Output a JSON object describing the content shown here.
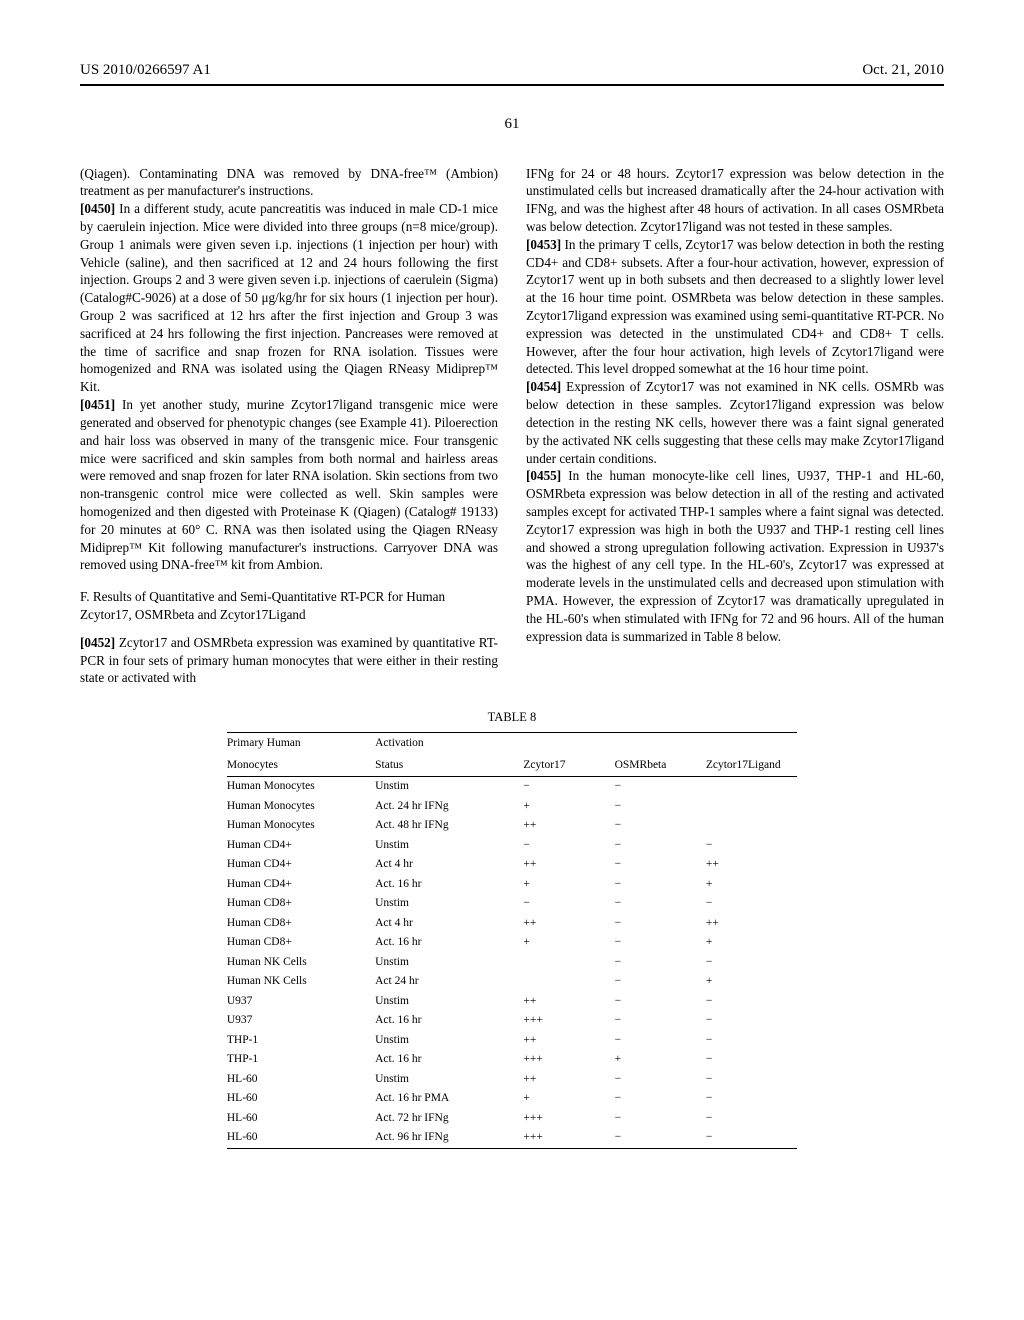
{
  "header": {
    "left": "US 2010/0266597 A1",
    "right": "Oct. 21, 2010",
    "page_number": "61"
  },
  "columns": {
    "left": [
      {
        "kind": "text",
        "content": "(Qiagen). Contaminating DNA was removed by DNA-free™ (Ambion) treatment as per manufacturer's instructions."
      },
      {
        "kind": "para",
        "num": "[0450]",
        "content": "   In a different study, acute pancreatitis was induced in male CD-1 mice by caerulein injection. Mice were divided into three groups (n=8 mice/group). Group 1 animals were given seven i.p. injections (1 injection per hour) with Vehicle (saline), and then sacrificed at 12 and 24 hours following the first injection. Groups 2 and 3 were given seven i.p. injections of caerulein (Sigma) (Catalog#C-9026) at a dose of 50 μg/kg/hr for six hours (1 injection per hour). Group 2 was sacrificed at 12 hrs after the first injection and Group 3 was sacrificed at 24 hrs following the first injection. Pancreases were removed at the time of sacrifice and snap frozen for RNA isolation. Tissues were homogenized and RNA was isolated using the Qiagen RNeasy Midiprep™ Kit."
      },
      {
        "kind": "para",
        "num": "[0451]",
        "content": "   In yet another study, murine Zcytor17ligand transgenic mice were generated and observed for phenotypic changes (see Example 41). Piloerection and hair loss was observed in many of the transgenic mice. Four transgenic mice were sacrificed and skin samples from both normal and hairless areas were removed and snap frozen for later RNA isolation. Skin sections from two non-transgenic control mice were collected as well. Skin samples were homogenized and then digested with Proteinase K (Qiagen) (Catalog# 19133) for 20 minutes at 60° C. RNA was then isolated using the Qiagen RNeasy Midiprep™ Kit following manufacturer's instructions. Carryover DNA was removed using DNA-free™ kit from Ambion."
      },
      {
        "kind": "heading",
        "content": "F. Results of Quantitative and Semi-Quantitative RT-PCR for Human Zcytor17, OSMRbeta and Zcytor17Ligand"
      },
      {
        "kind": "para",
        "num": "[0452]",
        "content": "   Zcytor17 and OSMRbeta expression was examined by quantitative RT-PCR in four sets of primary human monocytes that were either in their resting state or activated with"
      }
    ],
    "right": [
      {
        "kind": "text",
        "content": "IFNg for 24 or 48 hours. Zcytor17 expression was below detection in the unstimulated cells but increased dramatically after the 24-hour activation with IFNg, and was the highest after 48 hours of activation. In all cases OSMRbeta was below detection. Zcytor17ligand was not tested in these samples."
      },
      {
        "kind": "para",
        "num": "[0453]",
        "content": "   In the primary T cells, Zcytor17 was below detection in both the resting CD4+ and CD8+ subsets. After a four-hour activation, however, expression of Zcytor17 went up in both subsets and then decreased to a slightly lower level at the 16 hour time point. OSMRbeta was below detection in these samples. Zcytor17ligand expression was examined using semi-quantitative RT-PCR. No expression was detected in the unstimulated CD4+ and CD8+ T cells. However, after the four hour activation, high levels of Zcytor17ligand were detected. This level dropped somewhat at the 16 hour time point."
      },
      {
        "kind": "para",
        "num": "[0454]",
        "content": "   Expression of Zcytor17 was not examined in NK cells. OSMRb was below detection in these samples. Zcytor17ligand expression was below detection in the resting NK cells, however there was a faint signal generated by the activated NK cells suggesting that these cells may make Zcytor17ligand under certain conditions."
      },
      {
        "kind": "para",
        "num": "[0455]",
        "content": "   In the human monocyte-like cell lines, U937, THP-1 and HL-60, OSMRbeta expression was below detection in all of the resting and activated samples except for activated THP-1 samples where a faint signal was detected. Zcytor17 expression was high in both the U937 and THP-1 resting cell lines and showed a strong upregulation following activation. Expression in U937's was the highest of any cell type. In the HL-60's, Zcytor17 was expressed at moderate levels in the unstimulated cells and decreased upon stimulation with PMA. However, the expression of Zcytor17 was dramatically upregulated in the HL-60's when stimulated with IFNg for 72 and 96 hours. All of the human expression data is summarized in Table 8 below."
      }
    ]
  },
  "table": {
    "caption": "TABLE 8",
    "head_rows": [
      [
        "Primary Human",
        "Activation",
        "",
        "",
        ""
      ],
      [
        "Monocytes",
        "Status",
        "Zcytor17",
        "OSMRbeta",
        "Zcytor17Ligand"
      ]
    ],
    "rows": [
      [
        "Human Monocytes",
        "Unstim",
        "−",
        "−",
        ""
      ],
      [
        "Human Monocytes",
        "Act. 24 hr IFNg",
        "+",
        "−",
        ""
      ],
      [
        "Human Monocytes",
        "Act. 48 hr IFNg",
        "++",
        "−",
        ""
      ],
      [
        "Human CD4+",
        "Unstim",
        "−",
        "−",
        "−"
      ],
      [
        "Human CD4+",
        "Act 4 hr",
        "++",
        "−",
        "++"
      ],
      [
        "Human CD4+",
        "Act. 16 hr",
        "+",
        "−",
        "+"
      ],
      [
        "Human CD8+",
        "Unstim",
        "−",
        "−",
        "−"
      ],
      [
        "Human CD8+",
        "Act 4 hr",
        "++",
        "−",
        "++"
      ],
      [
        "Human CD8+",
        "Act. 16 hr",
        "+",
        "−",
        "+"
      ],
      [
        "Human NK Cells",
        "Unstim",
        "",
        "−",
        "−"
      ],
      [
        "Human NK Cells",
        "Act 24 hr",
        "",
        "−",
        "+"
      ],
      [
        "U937",
        "Unstim",
        "++",
        "−",
        "−"
      ],
      [
        "U937",
        "Act. 16 hr",
        "+++",
        "−",
        "−"
      ],
      [
        "THP-1",
        "Unstim",
        "++",
        "−",
        "−"
      ],
      [
        "THP-1",
        "Act. 16 hr",
        "+++",
        "+",
        "−"
      ],
      [
        "HL-60",
        "Unstim",
        "++",
        "−",
        "−"
      ],
      [
        "HL-60",
        "Act. 16 hr PMA",
        "+",
        "−",
        "−"
      ],
      [
        "HL-60",
        "Act. 72 hr IFNg",
        "+++",
        "−",
        "−"
      ],
      [
        "HL-60",
        "Act. 96 hr IFNg",
        "+++",
        "−",
        "−"
      ]
    ],
    "col_widths": [
      "26%",
      "26%",
      "16%",
      "16%",
      "16%"
    ]
  }
}
